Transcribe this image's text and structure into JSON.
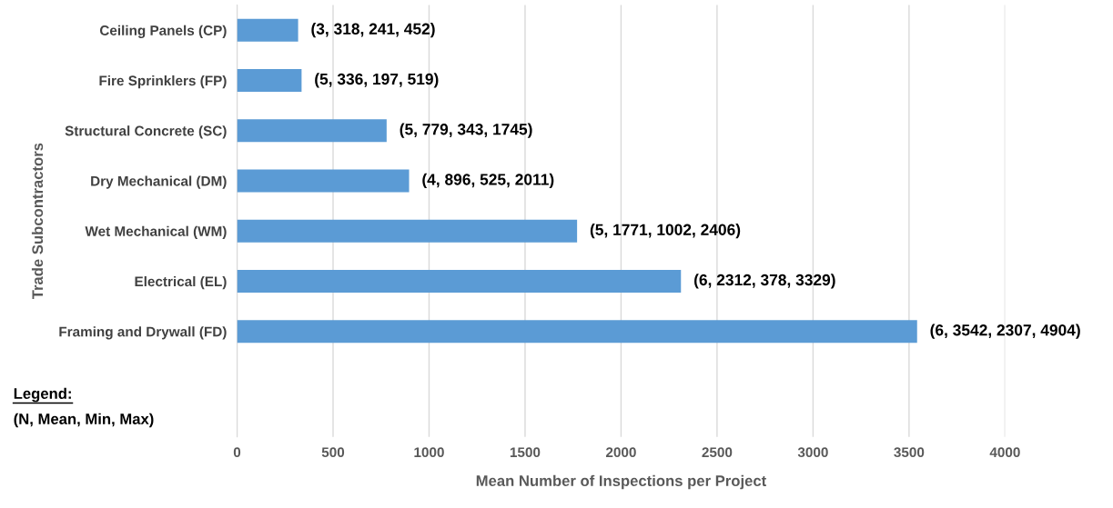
{
  "chart_data": {
    "type": "bar",
    "orientation": "horizontal",
    "categories": [
      "Ceiling Panels (CP)",
      "Fire Sprinklers (FP)",
      "Structural Concrete (SC)",
      "Dry Mechanical (DM)",
      "Wet Mechanical (WM)",
      "Electrical (EL)",
      "Framing and Drywall (FD)"
    ],
    "values": [
      318,
      336,
      779,
      896,
      1771,
      2312,
      3542
    ],
    "value_labels": [
      "(3, 318, 241, 452)",
      "(5, 336, 197, 519)",
      "(5, 779, 343, 1745)",
      "(4, 896, 525, 2011)",
      "(5, 1771, 1002, 2406)",
      "(6, 2312, 378, 3329)",
      "(6, 3542, 2307, 4904)"
    ],
    "color": "#5b9bd5",
    "xlabel": "Mean Number of Inspections per Project",
    "ylabel": "Trade Subcontractors",
    "xlim": [
      0,
      4000
    ],
    "xticks": [
      0,
      500,
      1000,
      1500,
      2000,
      2500,
      3000,
      3500,
      4000
    ],
    "grid": "x",
    "legend": false,
    "annotations": [
      "Legend:",
      "(N, Mean, Min, Max)"
    ]
  }
}
